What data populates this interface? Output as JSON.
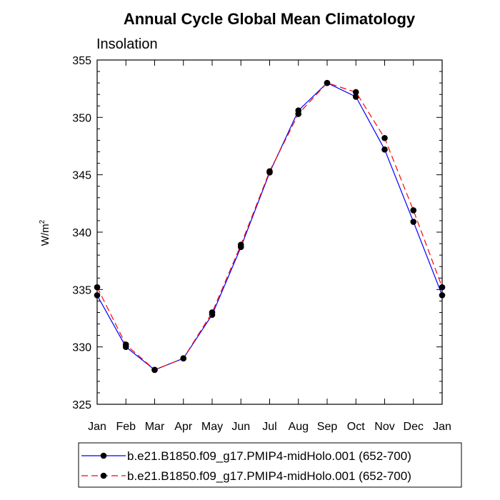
{
  "chart_data": {
    "type": "line",
    "title": "Annual Cycle Global Mean Climatology",
    "subtitle": "Insolation",
    "ylabel": "W/m",
    "ylabel_superscript": "2",
    "xlabel": "",
    "categories": [
      "Jan",
      "Feb",
      "Mar",
      "Apr",
      "May",
      "Jun",
      "Jul",
      "Aug",
      "Sep",
      "Oct",
      "Nov",
      "Dec",
      "Jan"
    ],
    "ylim": [
      325,
      355
    ],
    "yticks": [
      325,
      330,
      335,
      340,
      345,
      350,
      355
    ],
    "series": [
      {
        "name": "b.e21.B1850.f09_g17.PMIP4-midHolo.001 (652-700)",
        "color": "#0000ff",
        "dash": "solid",
        "values": [
          334.5,
          330.0,
          328.0,
          329.0,
          332.8,
          338.7,
          345.2,
          350.6,
          353.0,
          351.8,
          347.2,
          340.9,
          334.5
        ]
      },
      {
        "name": "b.e21.B1850.f09_g17.PMIP4-midHolo.001 (652-700)",
        "color": "#ff0000",
        "dash": "dashed",
        "values": [
          335.2,
          330.2,
          328.0,
          329.0,
          333.0,
          338.9,
          345.3,
          350.3,
          353.0,
          352.2,
          348.2,
          341.9,
          335.2
        ]
      }
    ],
    "grid": false,
    "legend_position": "bottom"
  }
}
